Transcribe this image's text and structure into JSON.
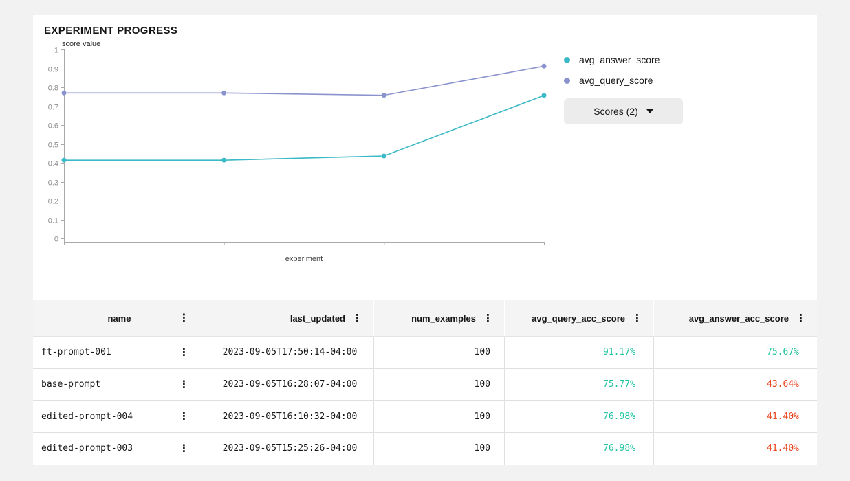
{
  "page": {
    "background": "#f2f2f2",
    "card_background": "#ffffff"
  },
  "header": {
    "title": "EXPERIMENT PROGRESS"
  },
  "icons": {
    "kebab_menu": "⋮",
    "caret_down": "▾"
  },
  "chart_data": {
    "type": "line",
    "title": "EXPERIMENT PROGRESS",
    "xlabel": "experiment",
    "ylabel": "score value",
    "ylim": [
      0,
      1
    ],
    "y_tick_labels": [
      "0",
      "0.1",
      "0.2",
      "0.3",
      "0.4",
      "0.5",
      "0.6",
      "0.7",
      "0.8",
      "0.9",
      "1"
    ],
    "x_tick_labels_shown": false,
    "grid": false,
    "legend_position": "right",
    "categories": [
      "edited-prompt-003",
      "edited-prompt-004",
      "base-prompt",
      "ft-prompt-001"
    ],
    "series": [
      {
        "name": "avg_answer_score",
        "color": "#3cb9c6",
        "values": [
          0.414,
          0.414,
          0.4364,
          0.7567
        ]
      },
      {
        "name": "avg_query_score",
        "color": "#8b93ce",
        "values": [
          0.7698,
          0.7698,
          0.7577,
          0.9117
        ]
      }
    ],
    "axis_color": "#a9a9a9",
    "tick_label_color": "#8d8d8d"
  },
  "scores_button": {
    "label": "Scores (2)"
  },
  "table": {
    "columns": [
      {
        "key": "name",
        "label": "name"
      },
      {
        "key": "last_updated",
        "label": "last_updated"
      },
      {
        "key": "num_examples",
        "label": "num_examples"
      },
      {
        "key": "avg_query_acc_score",
        "label": "avg_query_acc_score"
      },
      {
        "key": "avg_answer_acc_score",
        "label": "avg_answer_acc_score"
      }
    ],
    "value_colors": {
      "positive": "#20c4a0",
      "negative": "#e8431c"
    },
    "rows": [
      {
        "name": "ft-prompt-001",
        "last_updated": "2023-09-05T17:50:14-04:00",
        "num_examples": "100",
        "avg_query_acc_score": "91.17%",
        "avg_query_status": "positive",
        "avg_answer_acc_score": "75.67%",
        "avg_answer_status": "positive"
      },
      {
        "name": "base-prompt",
        "last_updated": "2023-09-05T16:28:07-04:00",
        "num_examples": "100",
        "avg_query_acc_score": "75.77%",
        "avg_query_status": "positive",
        "avg_answer_acc_score": "43.64%",
        "avg_answer_status": "negative"
      },
      {
        "name": "edited-prompt-004",
        "last_updated": "2023-09-05T16:10:32-04:00",
        "num_examples": "100",
        "avg_query_acc_score": "76.98%",
        "avg_query_status": "positive",
        "avg_answer_acc_score": "41.40%",
        "avg_answer_status": "negative"
      },
      {
        "name": "edited-prompt-003",
        "last_updated": "2023-09-05T15:25:26-04:00",
        "num_examples": "100",
        "avg_query_acc_score": "76.98%",
        "avg_query_status": "positive",
        "avg_answer_acc_score": "41.40%",
        "avg_answer_status": "negative"
      }
    ]
  }
}
